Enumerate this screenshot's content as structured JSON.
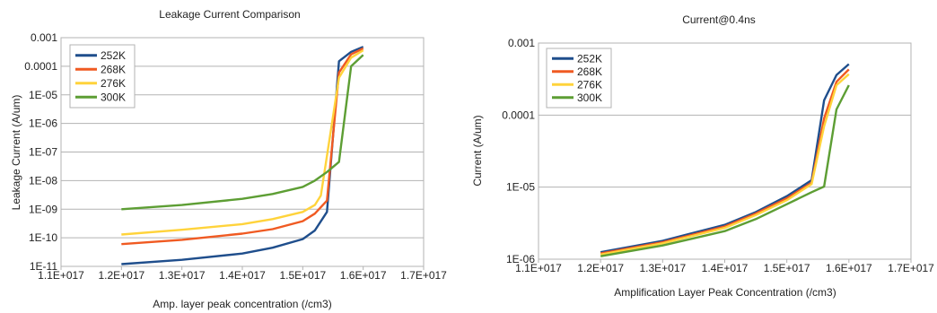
{
  "chart_data": [
    {
      "type": "line",
      "title": "Leakage Current Comparison",
      "xlabel": "Amp. layer peak concentration (/cm3)",
      "ylabel": "Leakage Current (A/um)",
      "y_scale": "log",
      "xlim": [
        1.1e+17,
        1.7e+17
      ],
      "ylim": [
        1e-11,
        0.001
      ],
      "x_ticks": [
        "1.1E+017",
        "1.2E+017",
        "1.3E+017",
        "1.4E+017",
        "1.5E+017",
        "1.6E+017",
        "1.7E+017"
      ],
      "y_ticks": [
        "1E-11",
        "1E-10",
        "1E-09",
        "1E-08",
        "1E-07",
        "1E-06",
        "1E-05",
        "0.0001",
        "0.001"
      ],
      "grid": "horizontal",
      "legend_position": "top-left",
      "series": [
        {
          "name": "252K",
          "color": "#1f4e8c",
          "x": [
            1.2e+17,
            1.3e+17,
            1.4e+17,
            1.45e+17,
            1.5e+17,
            1.52e+17,
            1.54e+17,
            1.56e+17,
            1.58e+17,
            1.6e+17
          ],
          "y": [
            1.2e-11,
            1.7e-11,
            2.8e-11,
            4.5e-11,
            9e-11,
            1.8e-10,
            8e-10,
            0.00015,
            0.00032,
            0.00048
          ]
        },
        {
          "name": "268K",
          "color": "#f05a22",
          "x": [
            1.2e+17,
            1.3e+17,
            1.4e+17,
            1.45e+17,
            1.5e+17,
            1.52e+17,
            1.54e+17,
            1.56e+17,
            1.58e+17,
            1.6e+17
          ],
          "y": [
            6e-11,
            8.5e-11,
            1.4e-10,
            2e-10,
            3.8e-10,
            7e-10,
            2e-09,
            6e-05,
            0.00026,
            0.00042
          ]
        },
        {
          "name": "276K",
          "color": "#ffd33b",
          "x": [
            1.2e+17,
            1.3e+17,
            1.4e+17,
            1.45e+17,
            1.5e+17,
            1.52e+17,
            1.53e+17,
            1.56e+17,
            1.58e+17,
            1.6e+17
          ],
          "y": [
            1.3e-10,
            1.9e-10,
            3e-10,
            4.5e-10,
            8e-10,
            1.4e-09,
            3e-09,
            4e-05,
            0.0002,
            0.00036
          ]
        },
        {
          "name": "300K",
          "color": "#5d9e34",
          "x": [
            1.2e+17,
            1.3e+17,
            1.4e+17,
            1.45e+17,
            1.5e+17,
            1.52e+17,
            1.54e+17,
            1.56e+17,
            1.58e+17,
            1.6e+17
          ],
          "y": [
            1e-09,
            1.4e-09,
            2.3e-09,
            3.4e-09,
            6e-09,
            1e-08,
            2e-08,
            4.5e-08,
            0.0001,
            0.00025
          ]
        }
      ]
    },
    {
      "type": "line",
      "title": "Current@0.4ns",
      "xlabel": "Amplification Layer Peak Concentration (/cm3)",
      "ylabel": "Current (A/um)",
      "y_scale": "log",
      "xlim": [
        1.1e+17,
        1.7e+17
      ],
      "ylim": [
        1e-06,
        0.001
      ],
      "x_ticks": [
        "1.1E+017",
        "1.2E+017",
        "1.3E+017",
        "1.4E+017",
        "1.5E+017",
        "1.6E+017",
        "1.7E+017"
      ],
      "y_ticks": [
        "1E-06",
        "1E-05",
        "0.0001",
        "0.001"
      ],
      "grid": "horizontal",
      "legend_position": "top-left",
      "series": [
        {
          "name": "252K",
          "color": "#1f4e8c",
          "x": [
            1.2e+17,
            1.3e+17,
            1.4e+17,
            1.45e+17,
            1.5e+17,
            1.54e+17,
            1.56e+17,
            1.58e+17,
            1.6e+17
          ],
          "y": [
            1.25e-06,
            1.8e-06,
            3e-06,
            4.5e-06,
            7.5e-06,
            1.25e-05,
            0.00016,
            0.00036,
            0.00051
          ]
        },
        {
          "name": "268K",
          "color": "#f05a22",
          "x": [
            1.2e+17,
            1.3e+17,
            1.4e+17,
            1.45e+17,
            1.5e+17,
            1.54e+17,
            1.56e+17,
            1.58e+17,
            1.6e+17
          ],
          "y": [
            1.2e-06,
            1.72e-06,
            2.85e-06,
            4.3e-06,
            7e-06,
            1.15e-05,
            9e-05,
            0.00029,
            0.00043
          ]
        },
        {
          "name": "276K",
          "color": "#ffd33b",
          "x": [
            1.2e+17,
            1.3e+17,
            1.4e+17,
            1.45e+17,
            1.5e+17,
            1.54e+17,
            1.56e+17,
            1.58e+17,
            1.6e+17
          ],
          "y": [
            1.16e-06,
            1.66e-06,
            2.72e-06,
            4.1e-06,
            6.6e-06,
            1.1e-05,
            7e-05,
            0.00026,
            0.00037
          ]
        },
        {
          "name": "300K",
          "color": "#5d9e34",
          "x": [
            1.2e+17,
            1.3e+17,
            1.4e+17,
            1.45e+17,
            1.5e+17,
            1.54e+17,
            1.56e+17,
            1.58e+17,
            1.6e+17
          ],
          "y": [
            1.1e-06,
            1.55e-06,
            2.45e-06,
            3.6e-06,
            5.8e-06,
            8.5e-06,
            1.02e-05,
            0.00012,
            0.00026
          ]
        }
      ]
    }
  ]
}
